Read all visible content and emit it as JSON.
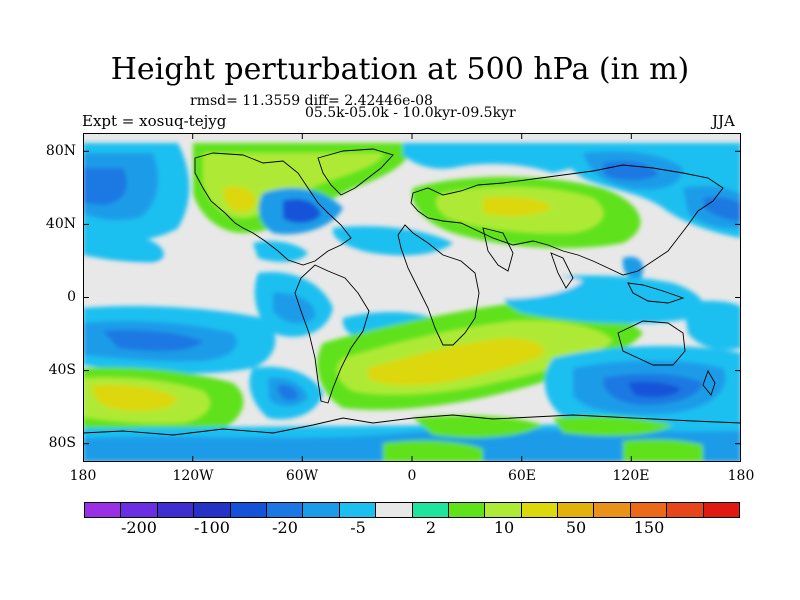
{
  "figure": {
    "title": "Height perturbation at 500 hPa (in m)",
    "stats_line": "rmsd= 11.3559 diff= 2.42446e-08",
    "period_line": "05.5k-05.0k - 10.0kyr-09.5kyr",
    "experiment_label": "Expt = xosuq-tejyg",
    "season_label": "JJA"
  },
  "axes": {
    "y_labels": [
      "80N",
      "40N",
      "0",
      "40S",
      "80S"
    ],
    "x_labels": [
      "180",
      "120W",
      "60W",
      "0",
      "60E",
      "120E",
      "180"
    ]
  },
  "colorbar": {
    "colors": [
      "#9b2fe6",
      "#6a2fe0",
      "#3d2fd0",
      "#2432c6",
      "#1452d8",
      "#1b78e2",
      "#1a9ce8",
      "#1cc0f0",
      "#e8e8e8",
      "#1ee4a0",
      "#5fe21a",
      "#aeea36",
      "#dcd80c",
      "#e2b20a",
      "#e8921a",
      "#ea6a1a",
      "#e6461a",
      "#e01a10"
    ],
    "labels": [
      "-200",
      "-100",
      "-20",
      "-5",
      "2",
      "10",
      "50",
      "150"
    ]
  },
  "map": {
    "projection": "cylindrical equidistant",
    "lon_range": [
      -180,
      180
    ],
    "lat_range": [
      -90,
      90
    ]
  }
}
